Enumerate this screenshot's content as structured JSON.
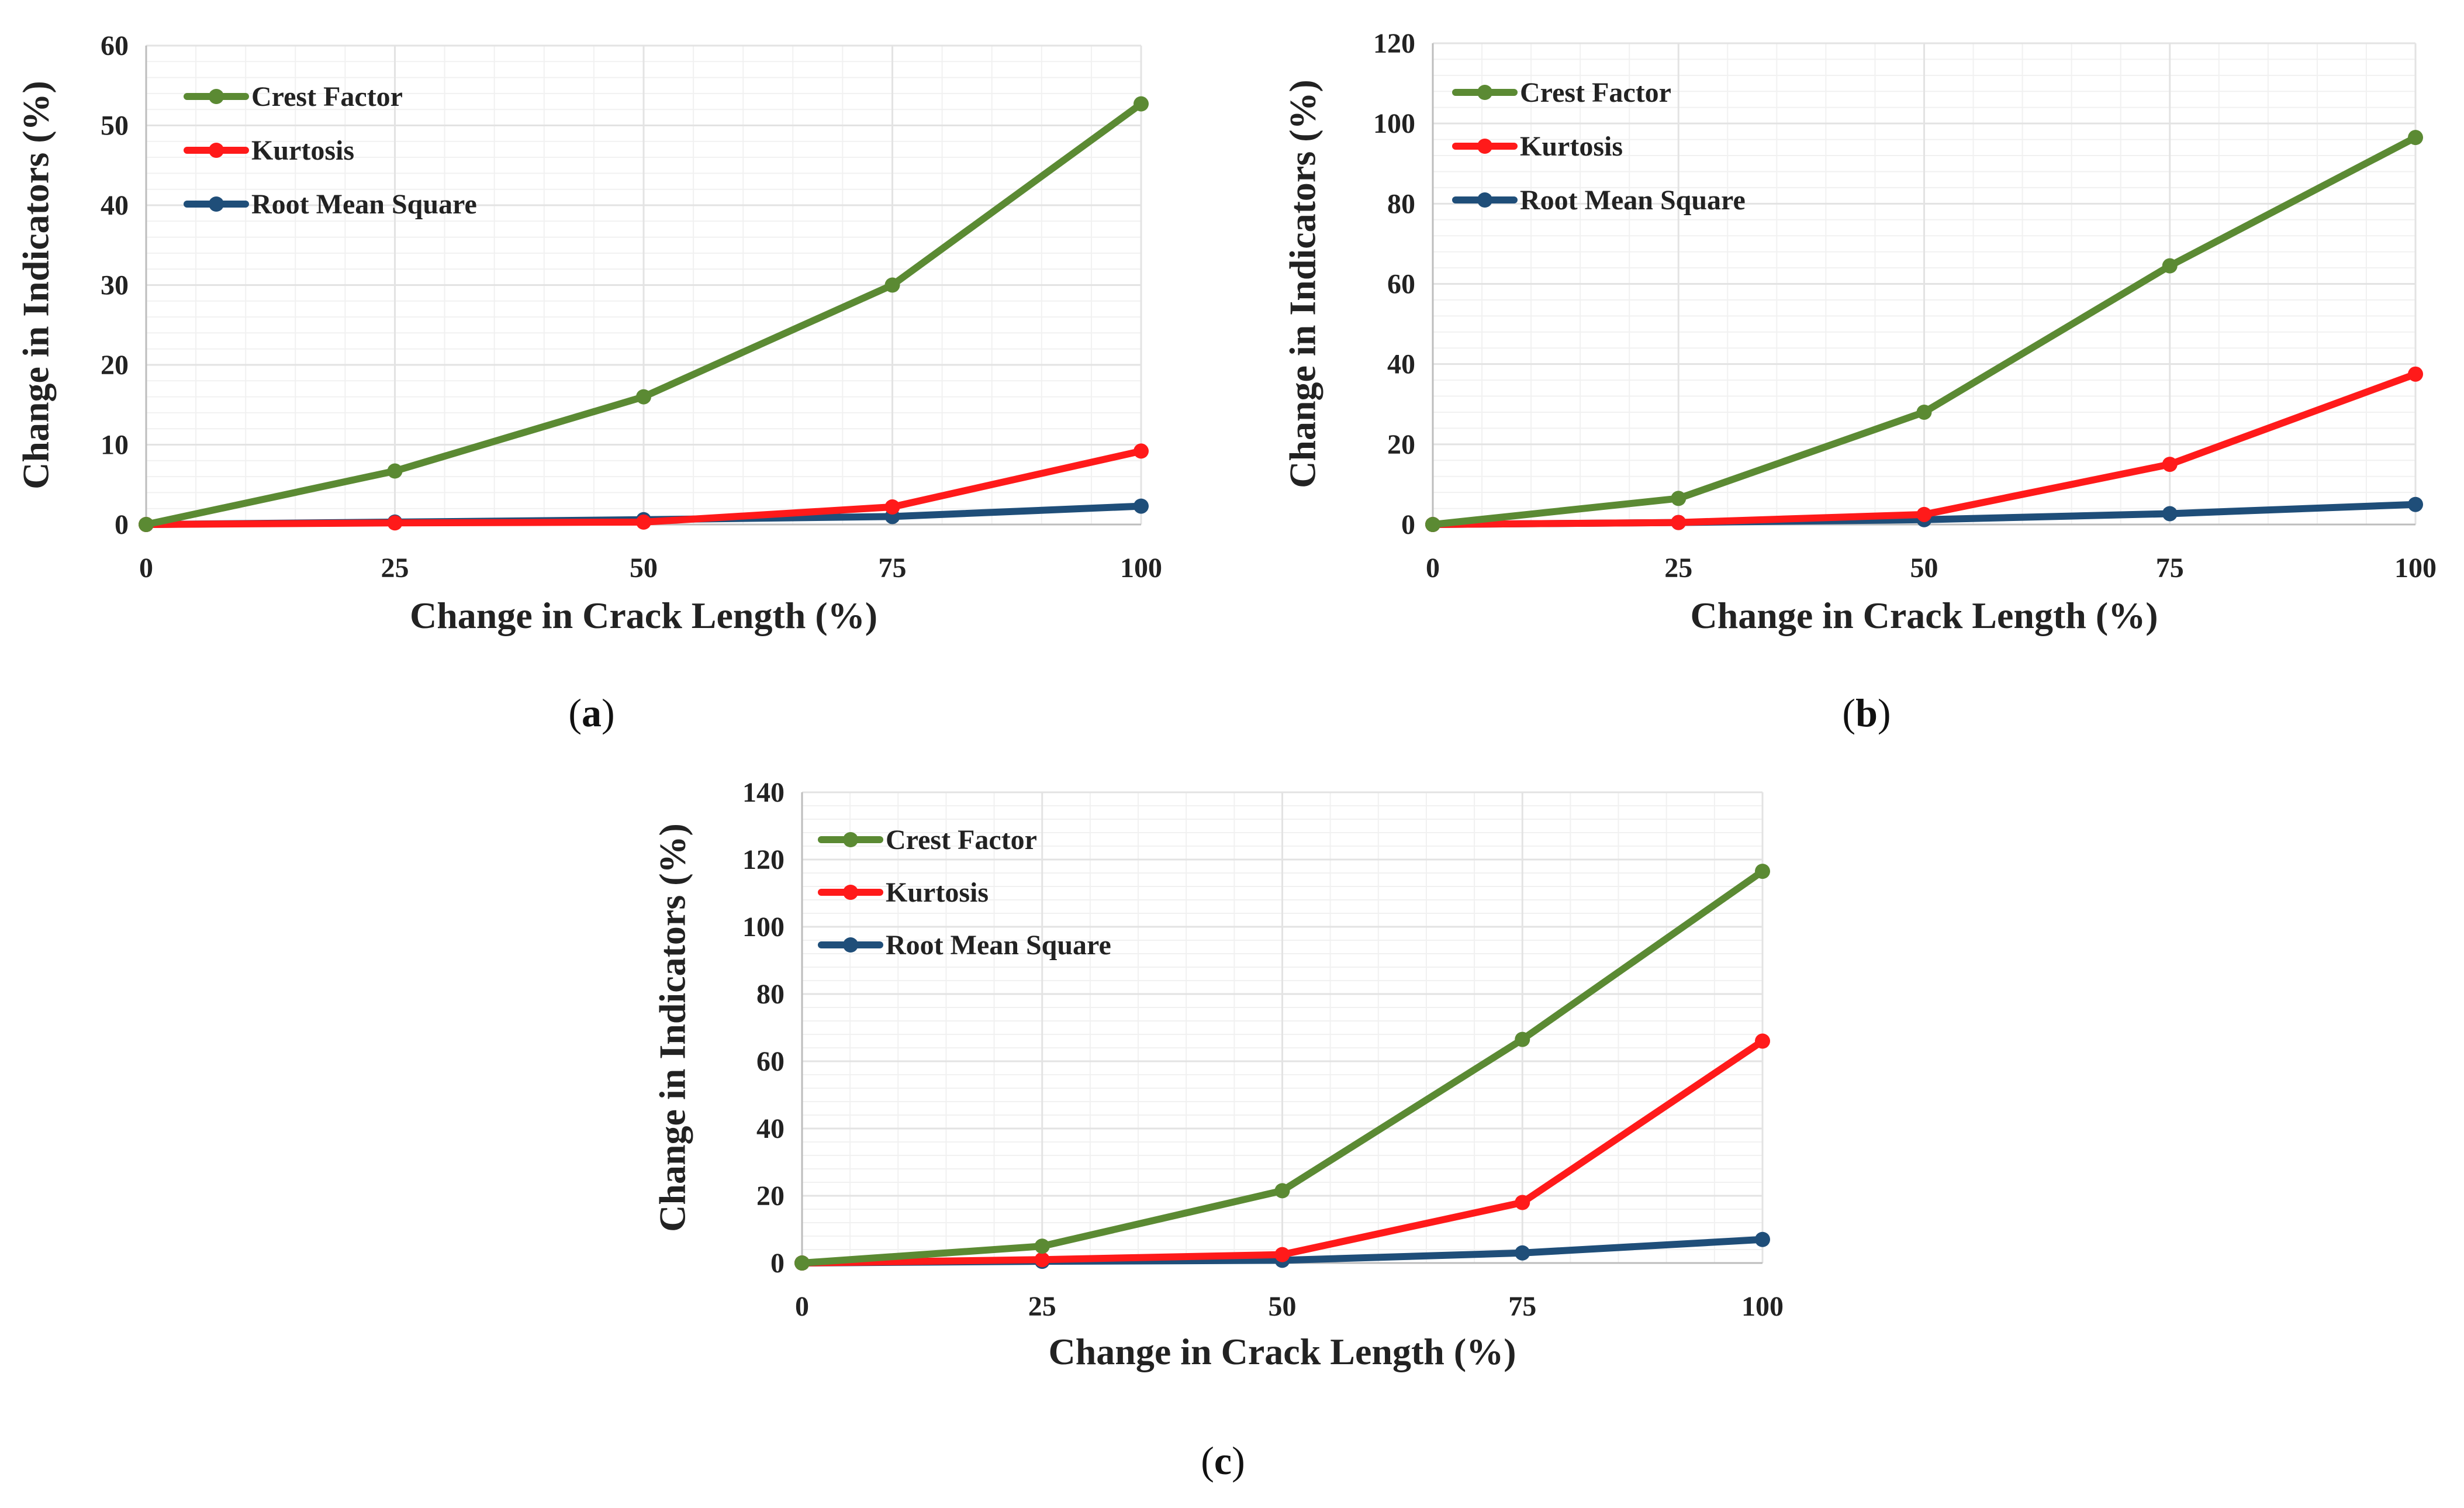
{
  "colors": {
    "crest_factor": "#5b8a33",
    "kurtosis": "#ff1a1a",
    "rms": "#1f4e79",
    "grid": "#e3e3e3",
    "grid_minor": "#f1f1f1",
    "axis": "#bdbdbd"
  },
  "chart_data": [
    {
      "id": "a",
      "type": "line",
      "label": "a",
      "xlabel": "Change in Crack Length (%)",
      "ylabel": "Change in Indicators (%)",
      "x": [
        0,
        25,
        50,
        75,
        100
      ],
      "xticks": [
        0,
        25,
        50,
        75,
        100
      ],
      "yticks": [
        0,
        10,
        20,
        30,
        40,
        50,
        60
      ],
      "ylim": [
        0,
        60
      ],
      "legend_position": "top-left",
      "series": [
        {
          "name": "Crest Factor",
          "color_key": "crest_factor",
          "values": [
            0,
            6.7,
            16,
            30,
            52.7
          ]
        },
        {
          "name": "Kurtosis",
          "color_key": "kurtosis",
          "values": [
            0,
            0.2,
            0.3,
            2.2,
            9.2
          ]
        },
        {
          "name": "Root Mean Square",
          "color_key": "rms",
          "values": [
            0,
            0.3,
            0.6,
            1.0,
            2.3
          ]
        }
      ]
    },
    {
      "id": "b",
      "type": "line",
      "label": "b",
      "xlabel": "Change in Crack Length (%)",
      "ylabel": "Change in Indicators (%)",
      "x": [
        0,
        25,
        50,
        75,
        100
      ],
      "xticks": [
        0,
        25,
        50,
        75,
        100
      ],
      "yticks": [
        0,
        20,
        40,
        60,
        80,
        100,
        120
      ],
      "ylim": [
        0,
        120
      ],
      "legend_position": "top-left",
      "series": [
        {
          "name": "Crest Factor",
          "color_key": "crest_factor",
          "values": [
            0,
            6.5,
            28,
            64.5,
            96.5
          ]
        },
        {
          "name": "Kurtosis",
          "color_key": "kurtosis",
          "values": [
            0,
            0.5,
            2.5,
            15,
            37.5
          ]
        },
        {
          "name": "Root Mean Square",
          "color_key": "rms",
          "values": [
            0,
            0.5,
            1.2,
            2.7,
            5
          ]
        }
      ]
    },
    {
      "id": "c",
      "type": "line",
      "label": "c",
      "xlabel": "Change in Crack Length (%)",
      "ylabel": "Change in Indicators (%)",
      "x": [
        0,
        25,
        50,
        75,
        100
      ],
      "xticks": [
        0,
        25,
        50,
        75,
        100
      ],
      "yticks": [
        0,
        20,
        40,
        60,
        80,
        100,
        120,
        140
      ],
      "ylim": [
        0,
        140
      ],
      "legend_position": "top-left",
      "series": [
        {
          "name": "Crest Factor",
          "color_key": "crest_factor",
          "values": [
            0,
            5,
            21.5,
            66.5,
            116.5
          ]
        },
        {
          "name": "Kurtosis",
          "color_key": "kurtosis",
          "values": [
            0,
            1,
            2.5,
            18,
            66
          ]
        },
        {
          "name": "Root Mean Square",
          "color_key": "rms",
          "values": [
            0,
            0.5,
            0.8,
            3,
            7
          ]
        }
      ]
    }
  ]
}
